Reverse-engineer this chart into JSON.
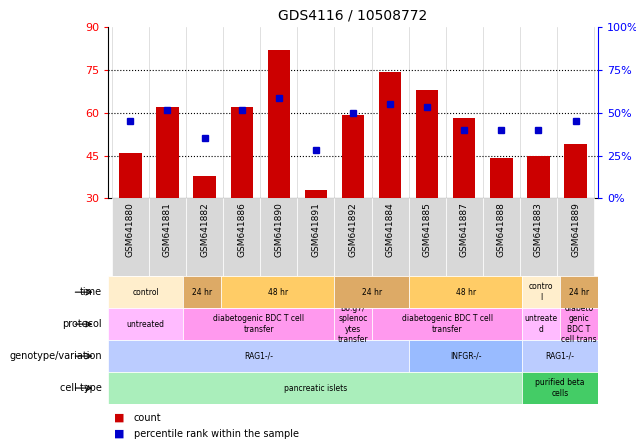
{
  "title": "GDS4116 / 10508772",
  "samples": [
    "GSM641880",
    "GSM641881",
    "GSM641882",
    "GSM641886",
    "GSM641890",
    "GSM641891",
    "GSM641892",
    "GSM641884",
    "GSM641885",
    "GSM641887",
    "GSM641888",
    "GSM641883",
    "GSM641889"
  ],
  "bar_heights": [
    46,
    62,
    38,
    62,
    82,
    33,
    59,
    74,
    68,
    58,
    44,
    45,
    49
  ],
  "dot_values": [
    57,
    61,
    51,
    61,
    65,
    47,
    60,
    63,
    62,
    54,
    54,
    54,
    57
  ],
  "ymin": 30,
  "ymax": 90,
  "yticks": [
    30,
    45,
    60,
    75,
    90
  ],
  "y2labels": [
    "0%",
    "25%",
    "50%",
    "75%",
    "100%"
  ],
  "dotted_lines": [
    45,
    60,
    75
  ],
  "bar_color": "#cc0000",
  "dot_color": "#0000cc",
  "rows": [
    {
      "label": "cell type",
      "segments": [
        {
          "text": "pancreatic islets",
          "start": 0,
          "end": 11,
          "color": "#aaeebb"
        },
        {
          "text": "purified beta\ncells",
          "start": 11,
          "end": 13,
          "color": "#44cc66"
        }
      ]
    },
    {
      "label": "genotype/variation",
      "segments": [
        {
          "text": "RAG1-/-",
          "start": 0,
          "end": 8,
          "color": "#bbccff"
        },
        {
          "text": "INFGR-/-",
          "start": 8,
          "end": 11,
          "color": "#99bbff"
        },
        {
          "text": "RAG1-/-",
          "start": 11,
          "end": 13,
          "color": "#bbccff"
        }
      ]
    },
    {
      "label": "protocol",
      "segments": [
        {
          "text": "untreated",
          "start": 0,
          "end": 2,
          "color": "#ffbbff"
        },
        {
          "text": "diabetogenic BDC T cell\ntransfer",
          "start": 2,
          "end": 6,
          "color": "#ff99ee"
        },
        {
          "text": "B6.g7/\nsplenoc\nytes\ntransfer",
          "start": 6,
          "end": 7,
          "color": "#ff99ee"
        },
        {
          "text": "diabetogenic BDC T cell\ntransfer",
          "start": 7,
          "end": 11,
          "color": "#ff99ee"
        },
        {
          "text": "untreate\nd",
          "start": 11,
          "end": 12,
          "color": "#ffbbff"
        },
        {
          "text": "diabeto\ngenic\nBDC T\ncell trans",
          "start": 12,
          "end": 13,
          "color": "#ff99ee"
        }
      ]
    },
    {
      "label": "time",
      "segments": [
        {
          "text": "control",
          "start": 0,
          "end": 2,
          "color": "#ffeecc"
        },
        {
          "text": "24 hr",
          "start": 2,
          "end": 3,
          "color": "#ddaa66"
        },
        {
          "text": "48 hr",
          "start": 3,
          "end": 6,
          "color": "#ffcc66"
        },
        {
          "text": "24 hr",
          "start": 6,
          "end": 8,
          "color": "#ddaa66"
        },
        {
          "text": "48 hr",
          "start": 8,
          "end": 11,
          "color": "#ffcc66"
        },
        {
          "text": "contro\nl",
          "start": 11,
          "end": 12,
          "color": "#ffeecc"
        },
        {
          "text": "24 hr",
          "start": 12,
          "end": 13,
          "color": "#ddaa66"
        }
      ]
    }
  ],
  "legend": [
    {
      "color": "#cc0000",
      "label": "count"
    },
    {
      "color": "#0000cc",
      "label": "percentile rank within the sample"
    }
  ]
}
